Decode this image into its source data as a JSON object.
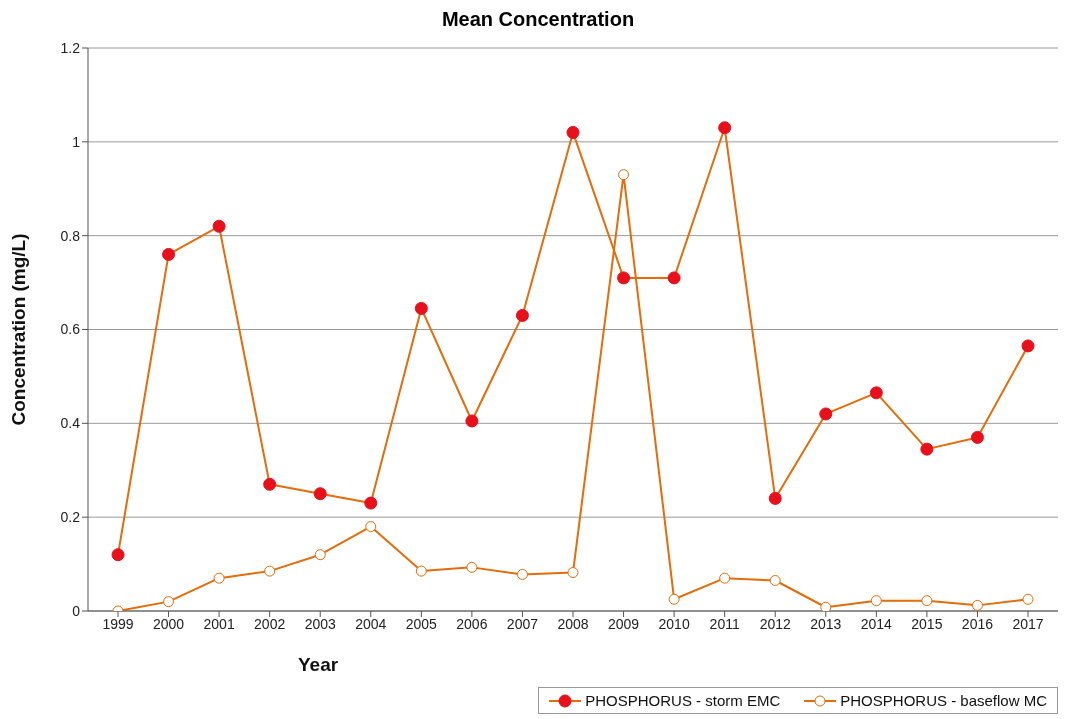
{
  "chart_data": {
    "type": "line",
    "title": "Mean Concentration",
    "xlabel": "Year",
    "ylabel": "Concentration (mg/L)",
    "categories": [
      "1999",
      "2000",
      "2001",
      "2002",
      "2003",
      "2004",
      "2005",
      "2006",
      "2007",
      "2008",
      "2009",
      "2010",
      "2011",
      "2012",
      "2013",
      "2014",
      "2015",
      "2016",
      "2017"
    ],
    "series": [
      {
        "name": "PHOSPHORUS - storm EMC",
        "color": "#e46c0a",
        "values": [
          0.12,
          0.76,
          0.82,
          0.27,
          0.25,
          0.23,
          0.645,
          0.405,
          0.63,
          1.02,
          0.71,
          0.71,
          1.03,
          0.24,
          0.42,
          0.465,
          0.345,
          0.37,
          0.565
        ]
      },
      {
        "name": "PHOSPHORUS - baseflow MC",
        "color": "#e46c0a",
        "values": [
          0,
          0.02,
          0.07,
          0.085,
          0.12,
          0.18,
          0.085,
          0.093,
          0.078,
          0.082,
          0.93,
          0.025,
          0.07,
          0.065,
          0.008,
          0.022,
          0.022,
          0.012,
          0.025
        ]
      }
    ],
    "ylim": [
      0,
      1.2
    ],
    "yticks": [
      0,
      0.2,
      0.4,
      0.6,
      0.8,
      1,
      1.2
    ],
    "grid": "y",
    "legend": "bottom right",
    "marker": "circle",
    "line_style": "solid"
  }
}
